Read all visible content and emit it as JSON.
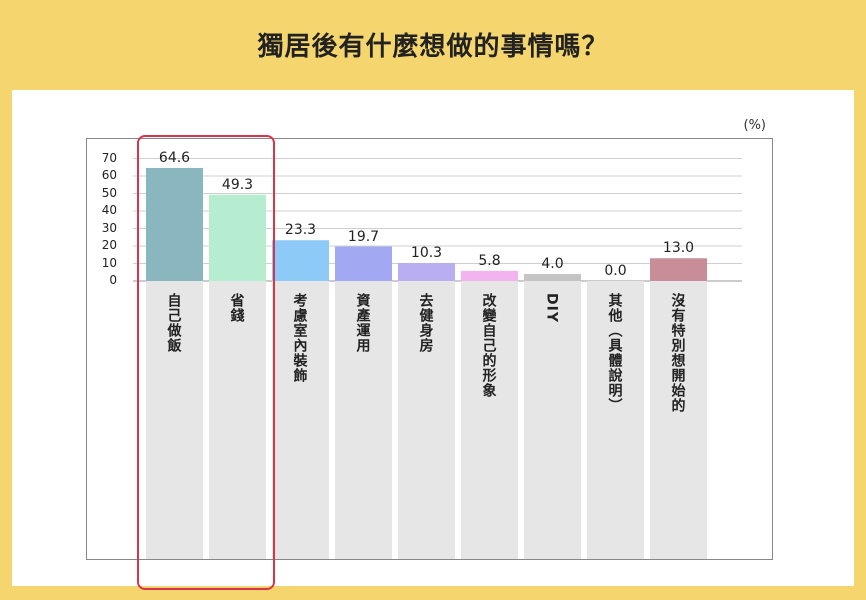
{
  "title": "獨居後有什麼想做的事情嗎？",
  "unit_label": "(%)",
  "chart_data": {
    "type": "bar",
    "categories": [
      "自己做飯",
      "省錢",
      "考慮室內裝飾",
      "資產運用",
      "去健身房",
      "改變自己的形象",
      "DIY",
      "其他（具體說明）",
      "沒有特別想開始的"
    ],
    "values": [
      64.6,
      49.3,
      23.3,
      19.7,
      10.3,
      5.8,
      4.0,
      0.0,
      13.0
    ],
    "value_labels": [
      "64.6",
      "49.3",
      "23.3",
      "19.7",
      "10.3",
      "5.8",
      "4.0",
      "0.0",
      "13.0"
    ],
    "colors": [
      "#8ab7bf",
      "#b6ecd0",
      "#8dcaf7",
      "#a2a8f1",
      "#b9aef1",
      "#f2b3ee",
      "#c4c4c4",
      "#e4e4e4",
      "#c98d98"
    ],
    "ylim": [
      0,
      70
    ],
    "yticks": [
      "0",
      "10",
      "20",
      "30",
      "40",
      "50",
      "60",
      "70"
    ],
    "grid": true,
    "highlighted_categories": [
      "自己做飯",
      "省錢"
    ]
  }
}
